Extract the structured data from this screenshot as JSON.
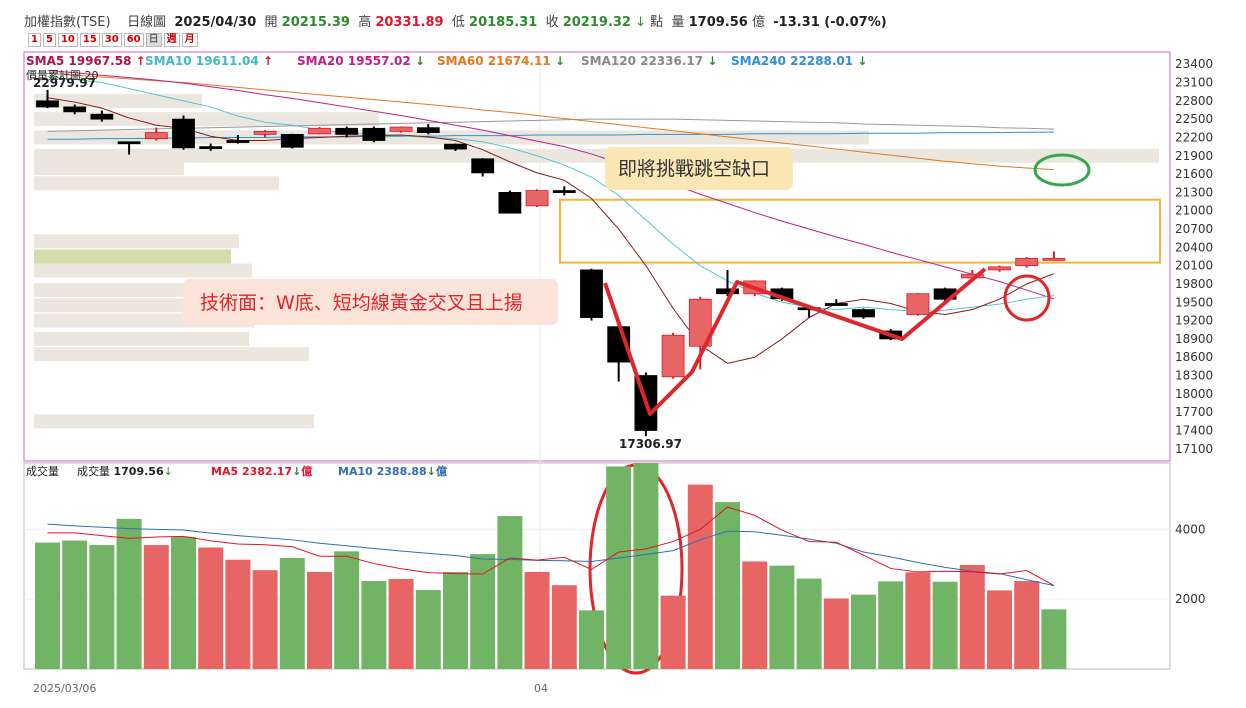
{
  "header": {
    "name": "加權指數(TSE)",
    "chart_kind": "日線圖",
    "date": "2025/04/30",
    "open_label": "開",
    "open": "20215.39",
    "high_label": "高",
    "high": "20331.89",
    "low_label": "低",
    "low": "20185.31",
    "close_label": "收",
    "close": "20219.32",
    "close_arrow": "↓",
    "point_unit": "點",
    "vol_label": "量",
    "volume": "1709.56",
    "vol_unit": "億",
    "change": "-13.31 (-0.07%)"
  },
  "period_buttons": [
    {
      "label": "1",
      "selected": false
    },
    {
      "label": "5",
      "selected": false
    },
    {
      "label": "10",
      "selected": false
    },
    {
      "label": "15",
      "selected": false
    },
    {
      "label": "30",
      "selected": false
    },
    {
      "label": "60",
      "selected": false
    },
    {
      "label": "日",
      "selected": true
    },
    {
      "label": "週",
      "selected": false
    },
    {
      "label": "月",
      "selected": false
    }
  ],
  "price_legend": [
    {
      "name": "SMA5",
      "value": "19967.58",
      "arrow": "↑",
      "color": "#b0124a"
    },
    {
      "name": "SMA10",
      "value": "19611.04",
      "arrow": "↑",
      "color": "#3fb9c6"
    },
    {
      "name": "SMA20",
      "value": "19557.02",
      "arrow": "↓",
      "color": "#c21d8c"
    },
    {
      "name": "SMA60",
      "value": "21674.11",
      "arrow": "↓",
      "color": "#e4781f"
    },
    {
      "name": "SMA120",
      "value": "22336.17",
      "arrow": "↓",
      "color": "#888888"
    },
    {
      "name": "SMA240",
      "value": "22288.01",
      "arrow": "↓",
      "color": "#2f8fd6"
    }
  ],
  "volume_profile_label": "價量累計圖",
  "volume_profile_bins": "20",
  "volume_legend": {
    "title": "成交量",
    "vol_name": "成交量",
    "vol_value": "1709.56",
    "ma5_name": "MA5",
    "ma5_value": "2382.17",
    "ma10_name": "MA10",
    "ma10_value": "2388.88",
    "unit": "億",
    "arrow": "↓",
    "ma5_color": "#e0162b",
    "ma10_color": "#2f6fb6"
  },
  "annotations": {
    "gap_text": "即將挑戰跳空缺口",
    "w_bottom_text": "技術面：W底、短均線黃金交叉且上揚",
    "high_label": "22979.97",
    "low_label": "17306.97"
  },
  "x_labels": [
    "2025/03/06",
    "04"
  ],
  "colors": {
    "up": "#e86565",
    "up_dark": "#e0162b",
    "down": "#000000",
    "vol_up": "#e86565",
    "vol_down": "#72b466",
    "frame": "#d060d0"
  },
  "chart_data": {
    "type": "candlestick",
    "price_ylim": [
      16900,
      23600
    ],
    "price_ticks": [
      23400,
      23100,
      22800,
      22500,
      22200,
      21900,
      21600,
      21300,
      21000,
      20700,
      20400,
      20100,
      19800,
      19500,
      19200,
      18900,
      18600,
      18300,
      18000,
      17700,
      17400,
      17100
    ],
    "volume_ylim": [
      0,
      5900
    ],
    "volume_ticks": [
      4000,
      2000
    ],
    "candles": [
      {
        "o": 22700,
        "c": 22800,
        "h": 22979.97,
        "l": 22680,
        "up": false
      },
      {
        "o": 22700,
        "c": 22620,
        "h": 22740,
        "l": 22580,
        "up": false
      },
      {
        "o": 22580,
        "c": 22500,
        "h": 22640,
        "l": 22460,
        "up": false
      },
      {
        "o": 22130,
        "c": 22120,
        "h": 22130,
        "l": 21920,
        "up": false
      },
      {
        "o": 22180,
        "c": 22280,
        "h": 22360,
        "l": 22150,
        "up": true
      },
      {
        "o": 22500,
        "c": 22030,
        "h": 22560,
        "l": 22000,
        "up": false
      },
      {
        "o": 22050,
        "c": 22030,
        "h": 22100,
        "l": 21980,
        "up": false
      },
      {
        "o": 22150,
        "c": 22140,
        "h": 22240,
        "l": 22100,
        "up": false
      },
      {
        "o": 22250,
        "c": 22300,
        "h": 22320,
        "l": 22200,
        "up": true
      },
      {
        "o": 22250,
        "c": 22040,
        "h": 22260,
        "l": 22020,
        "up": false
      },
      {
        "o": 22260,
        "c": 22350,
        "h": 22370,
        "l": 22250,
        "up": true
      },
      {
        "o": 22350,
        "c": 22250,
        "h": 22380,
        "l": 22200,
        "up": false
      },
      {
        "o": 22350,
        "c": 22150,
        "h": 22380,
        "l": 22120,
        "up": false
      },
      {
        "o": 22300,
        "c": 22370,
        "h": 22380,
        "l": 22280,
        "up": true
      },
      {
        "o": 22360,
        "c": 22280,
        "h": 22420,
        "l": 22250,
        "up": false
      },
      {
        "o": 22090,
        "c": 22010,
        "h": 22100,
        "l": 21980,
        "up": false
      },
      {
        "o": 21850,
        "c": 21620,
        "h": 21860,
        "l": 21560,
        "up": false
      },
      {
        "o": 21300,
        "c": 20960,
        "h": 21330,
        "l": 20960,
        "up": false
      },
      {
        "o": 21080,
        "c": 21330,
        "h": 21350,
        "l": 21060,
        "up": true
      },
      {
        "o": 21320,
        "c": 21330,
        "h": 21400,
        "l": 21250,
        "up": false
      },
      {
        "o": 20030,
        "c": 19250,
        "h": 20050,
        "l": 19200,
        "up": false
      },
      {
        "o": 19100,
        "c": 18520,
        "h": 19150,
        "l": 18200,
        "up": false
      },
      {
        "o": 18300,
        "c": 17400,
        "h": 18350,
        "l": 17306.97,
        "up": false
      },
      {
        "o": 18280,
        "c": 18960,
        "h": 19000,
        "l": 18250,
        "up": true
      },
      {
        "o": 18780,
        "c": 19550,
        "h": 19590,
        "l": 18400,
        "up": true
      },
      {
        "o": 19720,
        "c": 19640,
        "h": 20030,
        "l": 19600,
        "up": false
      },
      {
        "o": 19640,
        "c": 19850,
        "h": 19860,
        "l": 19600,
        "up": true
      },
      {
        "o": 19720,
        "c": 19560,
        "h": 19740,
        "l": 19520,
        "up": false
      },
      {
        "o": 19410,
        "c": 19380,
        "h": 19440,
        "l": 19250,
        "up": false
      },
      {
        "o": 19480,
        "c": 19470,
        "h": 19550,
        "l": 19450,
        "up": false
      },
      {
        "o": 19380,
        "c": 19260,
        "h": 19400,
        "l": 19230,
        "up": false
      },
      {
        "o": 19030,
        "c": 18900,
        "h": 19060,
        "l": 18880,
        "up": false
      },
      {
        "o": 19300,
        "c": 19640,
        "h": 19650,
        "l": 19280,
        "up": true
      },
      {
        "o": 19720,
        "c": 19550,
        "h": 19740,
        "l": 19520,
        "up": false
      },
      {
        "o": 19900,
        "c": 19960,
        "h": 20030,
        "l": 19880,
        "up": true
      },
      {
        "o": 20030,
        "c": 20080,
        "h": 20100,
        "l": 20000,
        "up": true
      },
      {
        "o": 20100,
        "c": 20220,
        "h": 20240,
        "l": 20070,
        "up": true
      },
      {
        "o": 20215.39,
        "c": 20219.32,
        "h": 20331.89,
        "l": 20185.31,
        "up": true
      }
    ],
    "volumes": [
      {
        "v": 3620,
        "up": false
      },
      {
        "v": 3680,
        "up": false
      },
      {
        "v": 3550,
        "up": false
      },
      {
        "v": 4300,
        "up": false
      },
      {
        "v": 3550,
        "up": true
      },
      {
        "v": 3780,
        "up": false
      },
      {
        "v": 3480,
        "up": true
      },
      {
        "v": 3130,
        "up": true
      },
      {
        "v": 2830,
        "up": true
      },
      {
        "v": 3180,
        "up": false
      },
      {
        "v": 2780,
        "up": true
      },
      {
        "v": 3370,
        "up": false
      },
      {
        "v": 2520,
        "up": false
      },
      {
        "v": 2580,
        "up": true
      },
      {
        "v": 2260,
        "up": false
      },
      {
        "v": 2780,
        "up": false
      },
      {
        "v": 3290,
        "up": false
      },
      {
        "v": 4380,
        "up": false
      },
      {
        "v": 2780,
        "up": true
      },
      {
        "v": 2400,
        "up": true
      },
      {
        "v": 1680,
        "up": false
      },
      {
        "v": 5800,
        "up": false
      },
      {
        "v": 5900,
        "up": false
      },
      {
        "v": 2100,
        "up": true
      },
      {
        "v": 5280,
        "up": true
      },
      {
        "v": 4780,
        "up": false
      },
      {
        "v": 3080,
        "up": true
      },
      {
        "v": 2960,
        "up": false
      },
      {
        "v": 2590,
        "up": false
      },
      {
        "v": 2020,
        "up": true
      },
      {
        "v": 2130,
        "up": false
      },
      {
        "v": 2510,
        "up": false
      },
      {
        "v": 2770,
        "up": true
      },
      {
        "v": 2500,
        "up": false
      },
      {
        "v": 2980,
        "up": true
      },
      {
        "v": 2250,
        "up": true
      },
      {
        "v": 2520,
        "up": true
      },
      {
        "v": 1709.56,
        "up": false
      }
    ],
    "volume_ma5": [
      3900,
      3900,
      3820,
      3740,
      3780,
      3800,
      3670,
      3580,
      3560,
      3500,
      3230,
      3230,
      3020,
      2870,
      2760,
      2730,
      2720,
      3180,
      3120,
      3200,
      2850,
      3350,
      3440,
      3650,
      4000,
      4640,
      4400,
      3980,
      3650,
      3630,
      3260,
      2880,
      2780,
      2800,
      2780,
      2720,
      2820,
      2390
    ],
    "volume_ma10": [
      4150,
      4100,
      4060,
      4020,
      4000,
      3980,
      3890,
      3820,
      3760,
      3700,
      3600,
      3530,
      3450,
      3380,
      3310,
      3250,
      3150,
      3140,
      3110,
      3100,
      3080,
      3180,
      3280,
      3390,
      3700,
      3950,
      3930,
      3830,
      3720,
      3600,
      3350,
      3210,
      3050,
      2910,
      2800,
      2730,
      2560,
      2389
    ],
    "sma5": [
      22850,
      22780,
      22680,
      22520,
      22400,
      22350,
      22220,
      22150,
      22150,
      22180,
      22200,
      22220,
      22230,
      22240,
      22210,
      22150,
      22000,
      21800,
      21620,
      21500,
      21200,
      20700,
      20100,
      19400,
      18800,
      18500,
      18600,
      18900,
      19250,
      19480,
      19550,
      19480,
      19350,
      19300,
      19380,
      19550,
      19800,
      19968
    ],
    "sma10": [
      23200,
      23150,
      23100,
      23000,
      22900,
      22800,
      22700,
      22550,
      22450,
      22400,
      22330,
      22270,
      22250,
      22230,
      22200,
      22180,
      22130,
      22030,
      21900,
      21750,
      21550,
      21250,
      20850,
      20450,
      20100,
      19850,
      19650,
      19500,
      19420,
      19380,
      19420,
      19380,
      19350,
      19370,
      19420,
      19470,
      19550,
      19611
    ],
    "sma20": [
      23300,
      23260,
      23220,
      23180,
      23140,
      23090,
      23030,
      22970,
      22900,
      22840,
      22770,
      22700,
      22630,
      22560,
      22480,
      22400,
      22320,
      22230,
      22140,
      22050,
      21930,
      21780,
      21600,
      21430,
      21270,
      21120,
      20970,
      20830,
      20700,
      20570,
      20450,
      20320,
      20200,
      20080,
      19960,
      19840,
      19700,
      19557
    ],
    "sma60": [
      23250,
      23220,
      23190,
      23160,
      23130,
      23100,
      23060,
      23020,
      22980,
      22940,
      22900,
      22860,
      22820,
      22780,
      22740,
      22700,
      22650,
      22610,
      22560,
      22510,
      22460,
      22410,
      22360,
      22310,
      22260,
      22210,
      22160,
      22110,
      22060,
      22010,
      21960,
      21910,
      21860,
      21810,
      21770,
      21730,
      21700,
      21674
    ],
    "sma120": [
      22300,
      22310,
      22320,
      22330,
      22340,
      22350,
      22360,
      22370,
      22380,
      22390,
      22400,
      22410,
      22420,
      22430,
      22440,
      22450,
      22460,
      22470,
      22480,
      22490,
      22500,
      22500,
      22500,
      22500,
      22490,
      22480,
      22470,
      22460,
      22450,
      22440,
      22420,
      22410,
      22400,
      22390,
      22380,
      22360,
      22350,
      22336
    ],
    "sma240": [
      22170,
      22170,
      22180,
      22180,
      22190,
      22190,
      22200,
      22200,
      22200,
      22210,
      22210,
      22210,
      22220,
      22220,
      22220,
      22230,
      22230,
      22230,
      22240,
      22240,
      22240,
      22240,
      22250,
      22250,
      22250,
      22250,
      22260,
      22260,
      22260,
      22260,
      22270,
      22270,
      22270,
      22280,
      22280,
      22280,
      22285,
      22288
    ],
    "volume_profile": [
      {
        "price": 22800,
        "len": 168
      },
      {
        "price": 22500,
        "len": 345
      },
      {
        "price": 22200,
        "len": 835
      },
      {
        "price": 21900,
        "len": 1125
      },
      {
        "price": 21700,
        "len": 150
      },
      {
        "price": 21450,
        "len": 245
      },
      {
        "price": 20500,
        "len": 205
      },
      {
        "price": 20250,
        "len": 197
      },
      {
        "price": 20020,
        "len": 218
      },
      {
        "price": 19700,
        "len": 220
      },
      {
        "price": 19450,
        "len": 250
      },
      {
        "price": 19200,
        "len": 220
      },
      {
        "price": 18900,
        "len": 215
      },
      {
        "price": 18650,
        "len": 275
      },
      {
        "price": 17550,
        "len": 280
      }
    ]
  }
}
